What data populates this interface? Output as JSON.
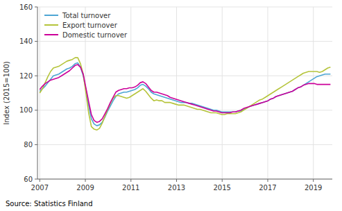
{
  "chart_data": {
    "type": "line",
    "ylabel": "Index (2015=100)",
    "source": "Source: Statistics Finland",
    "ylim": [
      60,
      160
    ],
    "yticks": [
      60,
      80,
      100,
      120,
      140,
      160
    ],
    "xlim": [
      2006.9,
      2019.83
    ],
    "xticks": [
      2007,
      2009,
      2011,
      2013,
      2015,
      2017,
      2019
    ],
    "grid": true,
    "legend": "upper left",
    "x": [
      2007.0,
      2007.1192,
      2007.2383,
      2007.3575,
      2007.4766,
      2007.5958,
      2007.715,
      2007.8341,
      2007.9533,
      2008.0724,
      2008.1916,
      2008.3107,
      2008.4299,
      2008.5491,
      2008.6682,
      2008.7874,
      2008.9065,
      2009.0257,
      2009.1449,
      2009.264,
      2009.3832,
      2009.5023,
      2009.6215,
      2009.7407,
      2009.8598,
      2009.979,
      2010.0981,
      2010.2173,
      2010.3364,
      2010.4556,
      2010.5748,
      2010.6939,
      2010.8131,
      2010.9322,
      2011.0514,
      2011.1706,
      2011.2897,
      2011.4089,
      2011.528,
      2011.6472,
      2011.7664,
      2011.8855,
      2012.0047,
      2012.1238,
      2012.243,
      2012.3621,
      2012.4813,
      2012.6005,
      2012.7196,
      2012.8388,
      2012.9579,
      2013.0771,
      2013.1963,
      2013.3154,
      2013.4346,
      2013.5537,
      2013.6729,
      2013.7921,
      2013.9112,
      2014.0304,
      2014.1495,
      2014.2687,
      2014.3879,
      2014.507,
      2014.6262,
      2014.7453,
      2014.8645,
      2014.9836,
      2015.1028,
      2015.222,
      2015.3411,
      2015.4603,
      2015.5794,
      2015.6986,
      2015.8178,
      2015.9369,
      2016.0561,
      2016.1752,
      2016.2944,
      2016.4136,
      2016.5327,
      2016.6519,
      2016.771,
      2016.8902,
      2017.0093,
      2017.1285,
      2017.2477,
      2017.3668,
      2017.486,
      2017.6051,
      2017.7243,
      2017.8435,
      2017.9626,
      2018.0818,
      2018.2009,
      2018.3201,
      2018.4393,
      2018.5584,
      2018.6776,
      2018.7967,
      2018.9159,
      2019.035,
      2019.1542,
      2019.2734,
      2019.3925,
      2019.5117,
      2019.6308,
      2019.75
    ],
    "series": [
      {
        "name": "Total turnover",
        "color": "#4da6d4",
        "values": [
          111.0,
          112.5,
          114.0,
          116.0,
          118.0,
          120.0,
          120.5,
          121.0,
          122.0,
          123.0,
          124.0,
          124.5,
          125.5,
          127.0,
          127.5,
          125.0,
          120.0,
          112.0,
          103.0,
          95.0,
          92.0,
          91.0,
          91.5,
          93.0,
          96.0,
          99.5,
          102.5,
          105.5,
          108.0,
          109.5,
          110.0,
          110.5,
          110.5,
          111.0,
          111.5,
          112.0,
          113.0,
          114.5,
          115.0,
          114.0,
          112.5,
          110.5,
          109.5,
          109.0,
          108.5,
          108.0,
          107.5,
          107.0,
          106.5,
          106.0,
          105.5,
          105.0,
          104.5,
          104.5,
          104.5,
          104.0,
          104.0,
          103.5,
          103.0,
          102.5,
          102.0,
          101.5,
          101.0,
          100.5,
          100.0,
          100.0,
          99.5,
          99.0,
          99.0,
          99.0,
          99.0,
          99.0,
          99.0,
          99.5,
          99.5,
          100.5,
          101.0,
          102.0,
          102.5,
          103.0,
          103.5,
          104.0,
          104.5,
          105.0,
          105.5,
          106.5,
          107.0,
          108.0,
          108.5,
          109.0,
          109.5,
          110.0,
          110.5,
          111.0,
          112.0,
          113.0,
          113.5,
          114.5,
          115.5,
          116.5,
          117.5,
          118.5,
          119.5,
          120.0,
          120.5,
          121.0,
          121.0,
          121.0
        ]
      },
      {
        "name": "Export turnover",
        "color": "#b5c43b",
        "values": [
          110.0,
          112.5,
          116.0,
          119.5,
          122.5,
          124.5,
          125.0,
          125.5,
          126.5,
          127.5,
          128.5,
          129.0,
          129.5,
          130.5,
          130.5,
          127.0,
          121.0,
          110.0,
          98.5,
          90.5,
          89.0,
          88.5,
          89.5,
          92.5,
          96.5,
          100.5,
          104.0,
          107.0,
          108.5,
          108.5,
          108.0,
          107.5,
          107.0,
          107.5,
          108.5,
          109.5,
          110.5,
          111.5,
          112.5,
          111.0,
          109.0,
          107.0,
          105.5,
          106.0,
          105.5,
          105.5,
          104.5,
          104.5,
          104.5,
          104.0,
          103.5,
          103.0,
          103.0,
          103.0,
          102.5,
          102.0,
          101.5,
          101.0,
          100.5,
          100.5,
          100.0,
          99.5,
          99.0,
          98.5,
          98.5,
          98.5,
          98.0,
          97.5,
          97.5,
          98.0,
          98.0,
          98.0,
          98.0,
          98.5,
          99.0,
          100.0,
          101.0,
          102.0,
          103.0,
          104.0,
          105.0,
          106.0,
          106.5,
          107.5,
          108.5,
          109.5,
          110.5,
          111.5,
          112.5,
          113.5,
          114.5,
          115.5,
          116.5,
          117.5,
          118.5,
          119.5,
          120.5,
          121.5,
          122.0,
          122.5,
          122.5,
          122.5,
          122.5,
          122.0,
          122.5,
          123.5,
          124.5,
          125.0
        ]
      },
      {
        "name": "Domestic turnover",
        "color": "#cc0099",
        "values": [
          112.0,
          114.0,
          115.5,
          116.5,
          117.5,
          118.0,
          118.5,
          119.0,
          120.0,
          121.0,
          122.0,
          123.0,
          124.5,
          126.0,
          126.5,
          125.0,
          121.0,
          113.0,
          105.0,
          97.5,
          94.0,
          93.0,
          93.5,
          95.0,
          98.0,
          101.0,
          104.5,
          107.5,
          110.5,
          111.5,
          112.0,
          112.5,
          112.5,
          113.0,
          113.0,
          113.5,
          114.5,
          116.0,
          116.5,
          115.5,
          113.5,
          111.5,
          110.5,
          110.5,
          110.0,
          109.5,
          109.0,
          108.5,
          107.5,
          107.0,
          106.5,
          106.0,
          105.5,
          105.0,
          104.5,
          104.0,
          103.5,
          103.0,
          102.5,
          102.0,
          101.5,
          101.0,
          100.5,
          100.0,
          99.5,
          99.5,
          99.0,
          98.5,
          98.5,
          98.5,
          98.5,
          99.0,
          99.0,
          99.5,
          100.0,
          101.0,
          101.5,
          102.0,
          102.5,
          103.0,
          103.5,
          104.0,
          104.5,
          105.0,
          105.5,
          106.5,
          107.0,
          108.0,
          108.5,
          109.0,
          109.5,
          110.0,
          110.5,
          111.0,
          112.0,
          113.0,
          113.5,
          114.5,
          115.0,
          115.5,
          115.5,
          115.5,
          115.0,
          115.0,
          115.0,
          115.0,
          115.0,
          115.0
        ]
      }
    ]
  }
}
